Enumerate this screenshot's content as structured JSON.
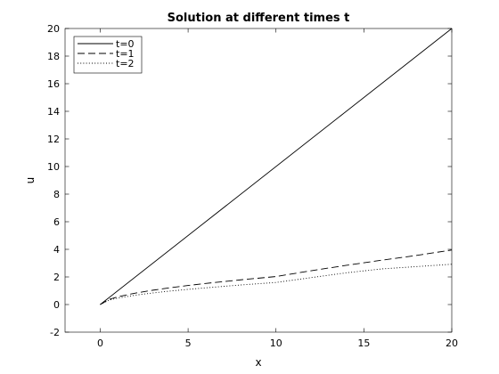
{
  "chart_data": {
    "type": "line",
    "title": "Solution at different times t",
    "xlabel": "x",
    "ylabel": "u",
    "xlim": [
      -2,
      20
    ],
    "ylim": [
      -2,
      20
    ],
    "xticks": [
      0,
      5,
      10,
      15,
      20
    ],
    "yticks": [
      -2,
      0,
      2,
      4,
      6,
      8,
      10,
      12,
      14,
      16,
      18,
      20
    ],
    "grid": false,
    "legend_position": "top-left",
    "series": [
      {
        "name": "t=0",
        "style": "solid",
        "color": "#000000",
        "x": [
          0,
          20
        ],
        "y": [
          0,
          20
        ]
      },
      {
        "name": "t=1",
        "style": "dashed",
        "color": "#000000",
        "x": [
          0,
          0.5,
          1,
          2,
          3,
          4,
          5,
          6,
          8,
          10,
          12,
          14,
          16,
          18,
          20
        ],
        "y": [
          0,
          0.37,
          0.56,
          0.83,
          1.04,
          1.22,
          1.38,
          1.53,
          1.79,
          2.03,
          2.45,
          2.84,
          3.21,
          3.56,
          3.95
        ]
      },
      {
        "name": "t=2",
        "style": "dotted",
        "color": "#000000",
        "x": [
          0,
          0.5,
          1,
          2,
          3,
          4,
          5,
          6,
          8,
          10,
          12,
          14,
          16,
          18,
          20
        ],
        "y": [
          0,
          0.32,
          0.47,
          0.68,
          0.84,
          0.98,
          1.1,
          1.21,
          1.42,
          1.6,
          1.95,
          2.3,
          2.58,
          2.75,
          2.92
        ]
      }
    ]
  }
}
